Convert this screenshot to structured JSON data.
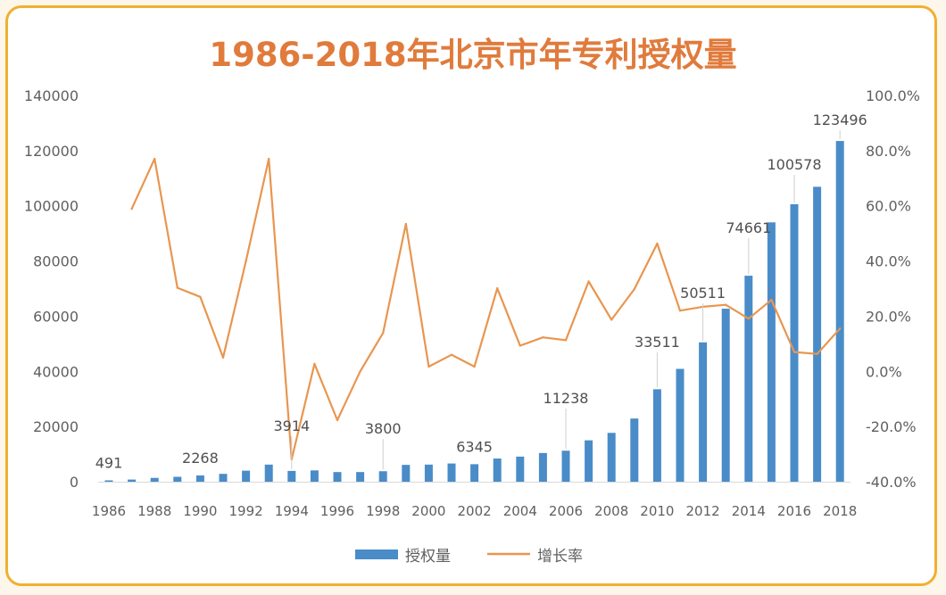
{
  "chart_data": {
    "type": "bar",
    "title": "1986-2018年北京市年专利授权量",
    "xlabel": "",
    "ylabel": "",
    "categories": [
      "1986",
      "1987",
      "1988",
      "1989",
      "1990",
      "1991",
      "1992",
      "1993",
      "1994",
      "1995",
      "1996",
      "1997",
      "1998",
      "1999",
      "2000",
      "2001",
      "2002",
      "2003",
      "2004",
      "2005",
      "2006",
      "2007",
      "2008",
      "2009",
      "2010",
      "2011",
      "2012",
      "2013",
      "2014",
      "2015",
      "2016",
      "2017",
      "2018"
    ],
    "x_tick_labels": [
      "1986",
      "1988",
      "1990",
      "1992",
      "1994",
      "1996",
      "1998",
      "2000",
      "2002",
      "2004",
      "2006",
      "2008",
      "2010",
      "2012",
      "2014",
      "2016",
      "2018"
    ],
    "series": [
      {
        "name": "授权量",
        "type": "bar",
        "axis": "left",
        "color": "#4a8cc8",
        "values": [
          491,
          780,
          1380,
          1780,
          2268,
          2850,
          4000,
          6200,
          3914,
          4100,
          3500,
          3500,
          3800,
          6100,
          6200,
          6600,
          6345,
          8400,
          9100,
          10400,
          11238,
          15000,
          17700,
          22900,
          33511,
          40900,
          50511,
          62700,
          74661,
          94000,
          100578,
          106900,
          123496
        ]
      },
      {
        "name": "增长率",
        "type": "line",
        "axis": "right",
        "color": "#e89650",
        "values": [
          null,
          58.9,
          77.0,
          30.3,
          27.0,
          5.0,
          40.0,
          77.0,
          -31.9,
          2.7,
          -17.7,
          0.0,
          13.9,
          53.4,
          1.7,
          6.0,
          1.7,
          30.1,
          9.3,
          12.3,
          11.3,
          32.6,
          18.7,
          29.8,
          46.3,
          22.0,
          23.4,
          24.1,
          19.1,
          25.9,
          7.0,
          6.3,
          15.5
        ]
      }
    ],
    "data_labels": [
      {
        "category": "1986",
        "text": "491"
      },
      {
        "category": "1990",
        "text": "2268"
      },
      {
        "category": "1994",
        "text": "3914"
      },
      {
        "category": "1998",
        "text": "3800"
      },
      {
        "category": "2002",
        "text": "6345"
      },
      {
        "category": "2006",
        "text": "11238"
      },
      {
        "category": "2010",
        "text": "33511"
      },
      {
        "category": "2012",
        "text": "50511"
      },
      {
        "category": "2014",
        "text": "74661"
      },
      {
        "category": "2016",
        "text": "100578"
      },
      {
        "category": "2018",
        "text": "123496"
      }
    ],
    "y_left": {
      "min": 0,
      "max": 140000,
      "ticks": [
        "0",
        "20000",
        "40000",
        "60000",
        "80000",
        "100000",
        "120000",
        "140000"
      ]
    },
    "y_right": {
      "min": -40,
      "max": 100,
      "ticks": [
        "-40.0%",
        "-20.0%",
        "0.0%",
        "20.0%",
        "40.0%",
        "60.0%",
        "80.0%",
        "100.0%"
      ]
    },
    "legend": {
      "position": "bottom",
      "items": [
        "授权量",
        "增长率"
      ]
    },
    "grid": false
  },
  "colors": {
    "title": "#e07b3c",
    "frame": "#f0b030",
    "bar": "#4a8cc8",
    "line": "#e89650",
    "tick_text": "#606060",
    "label_text": "#505050"
  }
}
